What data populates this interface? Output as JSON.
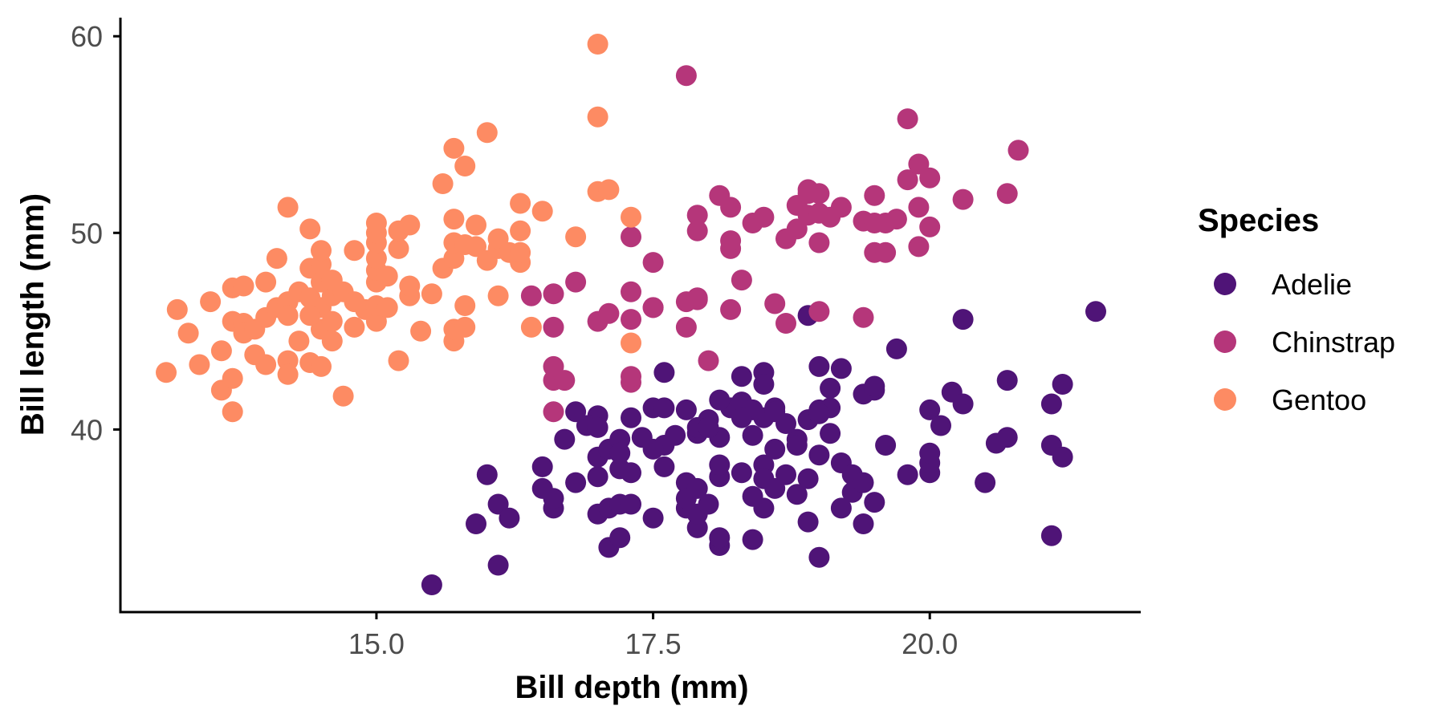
{
  "chart_data": {
    "type": "scatter",
    "xlabel": "Bill depth (mm)",
    "ylabel": "Bill length (mm)",
    "xlim": [
      13.1,
      21.5
    ],
    "ylim": [
      32.1,
      59.6
    ],
    "x_ticks": [
      "15.0",
      "17.5",
      "20.0"
    ],
    "y_ticks": [
      "40",
      "50",
      "60"
    ],
    "grid": false,
    "legend": {
      "title": "Species",
      "position": "right"
    },
    "series": [
      {
        "name": "Adelie",
        "color": "#4f1477",
        "points": [
          [
            15.5,
            32.1
          ],
          [
            16.1,
            33.1
          ],
          [
            17.1,
            34.0
          ],
          [
            17.2,
            34.5
          ],
          [
            17.9,
            35.0
          ],
          [
            18.1,
            34.1
          ],
          [
            18.1,
            34.5
          ],
          [
            18.4,
            34.4
          ],
          [
            19.0,
            33.5
          ],
          [
            21.1,
            34.6
          ],
          [
            15.9,
            35.2
          ],
          [
            16.1,
            36.2
          ],
          [
            16.2,
            35.5
          ],
          [
            16.6,
            36.0
          ],
          [
            16.6,
            36.5
          ],
          [
            16.5,
            37.0
          ],
          [
            16.5,
            38.1
          ],
          [
            16.0,
            37.7
          ],
          [
            16.8,
            37.3
          ],
          [
            17.0,
            35.7
          ],
          [
            17.1,
            36.0
          ],
          [
            17.2,
            36.2
          ],
          [
            17.3,
            36.2
          ],
          [
            17.5,
            35.5
          ],
          [
            17.0,
            37.6
          ],
          [
            17.2,
            38.0
          ],
          [
            17.3,
            37.8
          ],
          [
            17.0,
            38.6
          ],
          [
            17.1,
            39.0
          ],
          [
            17.2,
            39.5
          ],
          [
            17.4,
            39.6
          ],
          [
            17.6,
            39.2
          ],
          [
            17.6,
            38.1
          ],
          [
            17.8,
            37.3
          ],
          [
            17.8,
            36.0
          ],
          [
            17.8,
            36.5
          ],
          [
            17.9,
            35.7
          ],
          [
            18.0,
            36.2
          ],
          [
            17.9,
            37.0
          ],
          [
            18.1,
            37.6
          ],
          [
            18.1,
            38.2
          ],
          [
            18.1,
            39.6
          ],
          [
            17.9,
            39.8
          ],
          [
            18.0,
            40.5
          ],
          [
            18.2,
            41.1
          ],
          [
            18.1,
            41.5
          ],
          [
            17.8,
            41.0
          ],
          [
            17.9,
            40.1
          ],
          [
            17.7,
            39.7
          ],
          [
            17.5,
            41.1
          ],
          [
            17.6,
            41.1
          ],
          [
            17.6,
            42.9
          ],
          [
            17.0,
            40.7
          ],
          [
            16.9,
            40.2
          ],
          [
            16.8,
            40.9
          ],
          [
            17.0,
            40.1
          ],
          [
            17.3,
            40.6
          ],
          [
            16.7,
            39.5
          ],
          [
            18.3,
            41.4
          ],
          [
            18.3,
            42.7
          ],
          [
            18.5,
            42.9
          ],
          [
            18.5,
            42.3
          ],
          [
            18.6,
            41.1
          ],
          [
            18.5,
            40.6
          ],
          [
            18.4,
            41.0
          ],
          [
            18.4,
            39.7
          ],
          [
            18.6,
            39.0
          ],
          [
            18.8,
            39.5
          ],
          [
            18.5,
            38.2
          ],
          [
            18.3,
            37.8
          ],
          [
            18.5,
            37.5
          ],
          [
            18.6,
            37.0
          ],
          [
            18.4,
            36.6
          ],
          [
            18.5,
            36.0
          ],
          [
            18.7,
            37.7
          ],
          [
            18.8,
            36.7
          ],
          [
            18.9,
            37.5
          ],
          [
            18.9,
            35.3
          ],
          [
            19.0,
            38.7
          ],
          [
            19.1,
            39.8
          ],
          [
            18.9,
            40.5
          ],
          [
            19.0,
            41.0
          ],
          [
            19.1,
            41.1
          ],
          [
            19.2,
            43.1
          ],
          [
            19.0,
            43.2
          ],
          [
            19.1,
            42.1
          ],
          [
            19.2,
            38.3
          ],
          [
            19.2,
            36.0
          ],
          [
            19.3,
            37.7
          ],
          [
            19.3,
            36.8
          ],
          [
            19.4,
            37.3
          ],
          [
            19.5,
            36.3
          ],
          [
            19.4,
            35.2
          ],
          [
            19.4,
            41.8
          ],
          [
            19.5,
            42.0
          ],
          [
            19.5,
            42.2
          ],
          [
            19.6,
            39.2
          ],
          [
            19.7,
            44.1
          ],
          [
            19.8,
            37.7
          ],
          [
            20.0,
            37.8
          ],
          [
            20.0,
            38.3
          ],
          [
            20.0,
            38.8
          ],
          [
            20.0,
            41.0
          ],
          [
            20.1,
            40.2
          ],
          [
            20.2,
            41.9
          ],
          [
            20.3,
            41.3
          ],
          [
            20.3,
            45.6
          ],
          [
            20.5,
            37.3
          ],
          [
            20.6,
            39.3
          ],
          [
            20.7,
            39.6
          ],
          [
            20.7,
            42.5
          ],
          [
            21.1,
            39.2
          ],
          [
            21.2,
            38.6
          ],
          [
            21.1,
            41.3
          ],
          [
            21.2,
            42.3
          ],
          [
            21.5,
            46.0
          ],
          [
            18.9,
            45.8
          ],
          [
            18.7,
            40.3
          ],
          [
            18.3,
            40.6
          ],
          [
            18.0,
            40.1
          ],
          [
            17.2,
            38.8
          ],
          [
            17.5,
            39.0
          ],
          [
            18.6,
            40.9
          ],
          [
            18.8,
            39.2
          ],
          [
            19.0,
            40.8
          ]
        ]
      },
      {
        "name": "Chinstrap",
        "color": "#b5367a",
        "points": [
          [
            16.6,
            40.9
          ],
          [
            16.6,
            42.5
          ],
          [
            16.7,
            42.5
          ],
          [
            16.6,
            43.2
          ],
          [
            16.4,
            46.8
          ],
          [
            16.6,
            46.9
          ],
          [
            16.6,
            45.2
          ],
          [
            16.8,
            47.5
          ],
          [
            17.0,
            45.5
          ],
          [
            17.1,
            45.9
          ],
          [
            17.3,
            42.4
          ],
          [
            17.3,
            42.7
          ],
          [
            17.3,
            45.6
          ],
          [
            17.3,
            47.0
          ],
          [
            17.3,
            49.8
          ],
          [
            17.5,
            46.2
          ],
          [
            17.5,
            48.5
          ],
          [
            17.8,
            45.2
          ],
          [
            17.8,
            46.5
          ],
          [
            17.9,
            46.6
          ],
          [
            17.9,
            46.7
          ],
          [
            17.9,
            50.1
          ],
          [
            17.9,
            50.9
          ],
          [
            18.0,
            43.5
          ],
          [
            18.2,
            46.1
          ],
          [
            18.2,
            49.2
          ],
          [
            18.2,
            49.6
          ],
          [
            18.1,
            51.9
          ],
          [
            18.2,
            51.3
          ],
          [
            18.3,
            47.6
          ],
          [
            18.4,
            50.5
          ],
          [
            18.5,
            50.8
          ],
          [
            18.6,
            46.4
          ],
          [
            18.7,
            45.4
          ],
          [
            18.7,
            49.7
          ],
          [
            18.8,
            50.2
          ],
          [
            18.8,
            51.4
          ],
          [
            18.9,
            50.9
          ],
          [
            18.9,
            52.2
          ],
          [
            19.0,
            46.0
          ],
          [
            19.0,
            49.5
          ],
          [
            19.0,
            51.0
          ],
          [
            19.1,
            50.8
          ],
          [
            19.0,
            52.0
          ],
          [
            19.2,
            51.3
          ],
          [
            19.4,
            45.7
          ],
          [
            19.4,
            50.6
          ],
          [
            19.5,
            49.0
          ],
          [
            19.5,
            50.5
          ],
          [
            19.5,
            51.9
          ],
          [
            19.6,
            49.0
          ],
          [
            19.6,
            50.5
          ],
          [
            19.7,
            50.7
          ],
          [
            19.8,
            52.7
          ],
          [
            19.8,
            55.8
          ],
          [
            19.9,
            49.3
          ],
          [
            19.9,
            51.3
          ],
          [
            19.9,
            53.5
          ],
          [
            20.0,
            52.8
          ],
          [
            20.0,
            50.3
          ],
          [
            20.3,
            51.7
          ],
          [
            20.7,
            52.0
          ],
          [
            20.8,
            54.2
          ],
          [
            17.8,
            58.0
          ],
          [
            17.5,
            46.2
          ],
          [
            18.9,
            52.0
          ]
        ]
      },
      {
        "name": "Gentoo",
        "color": "#fd8b63",
        "points": [
          [
            13.1,
            42.9
          ],
          [
            13.2,
            46.1
          ],
          [
            13.3,
            44.9
          ],
          [
            13.4,
            43.3
          ],
          [
            13.5,
            46.5
          ],
          [
            13.6,
            42.0
          ],
          [
            13.6,
            44.0
          ],
          [
            13.7,
            45.5
          ],
          [
            13.7,
            47.2
          ],
          [
            13.8,
            47.3
          ],
          [
            13.7,
            40.9
          ],
          [
            13.7,
            42.6
          ],
          [
            13.8,
            45.4
          ],
          [
            13.8,
            44.9
          ],
          [
            13.9,
            45.1
          ],
          [
            13.9,
            43.8
          ],
          [
            14.0,
            45.7
          ],
          [
            14.0,
            43.3
          ],
          [
            14.0,
            47.5
          ],
          [
            14.1,
            48.7
          ],
          [
            14.1,
            46.2
          ],
          [
            14.2,
            46.5
          ],
          [
            14.2,
            43.5
          ],
          [
            14.2,
            42.8
          ],
          [
            14.2,
            45.8
          ],
          [
            14.2,
            51.3
          ],
          [
            14.3,
            47.0
          ],
          [
            14.3,
            44.5
          ],
          [
            14.4,
            46.7
          ],
          [
            14.4,
            48.2
          ],
          [
            14.4,
            50.2
          ],
          [
            14.4,
            43.4
          ],
          [
            14.5,
            43.2
          ],
          [
            14.5,
            45.1
          ],
          [
            14.5,
            46.2
          ],
          [
            14.5,
            47.5
          ],
          [
            14.5,
            48.4
          ],
          [
            14.5,
            49.1
          ],
          [
            14.6,
            46.8
          ],
          [
            14.6,
            45.5
          ],
          [
            14.6,
            44.5
          ],
          [
            14.7,
            41.7
          ],
          [
            14.7,
            47.0
          ],
          [
            14.8,
            46.5
          ],
          [
            14.8,
            45.2
          ],
          [
            14.8,
            49.1
          ],
          [
            14.9,
            46.1
          ],
          [
            15.0,
            45.5
          ],
          [
            15.0,
            46.3
          ],
          [
            15.0,
            47.5
          ],
          [
            15.0,
            48.1
          ],
          [
            15.0,
            48.7
          ],
          [
            15.0,
            49.5
          ],
          [
            15.0,
            50.0
          ],
          [
            15.0,
            50.5
          ],
          [
            15.1,
            46.2
          ],
          [
            15.2,
            43.5
          ],
          [
            15.2,
            49.2
          ],
          [
            15.2,
            50.1
          ],
          [
            15.3,
            46.8
          ],
          [
            15.3,
            47.3
          ],
          [
            15.3,
            50.4
          ],
          [
            15.4,
            45.0
          ],
          [
            15.5,
            46.9
          ],
          [
            15.6,
            48.2
          ],
          [
            15.6,
            52.5
          ],
          [
            15.7,
            44.5
          ],
          [
            15.7,
            45.1
          ],
          [
            15.7,
            48.7
          ],
          [
            15.7,
            49.5
          ],
          [
            15.7,
            50.7
          ],
          [
            15.7,
            54.3
          ],
          [
            15.8,
            45.2
          ],
          [
            15.8,
            46.3
          ],
          [
            15.8,
            49.4
          ],
          [
            15.8,
            53.4
          ],
          [
            15.9,
            49.3
          ],
          [
            15.9,
            50.4
          ],
          [
            16.0,
            48.6
          ],
          [
            16.0,
            55.1
          ],
          [
            16.1,
            46.8
          ],
          [
            16.1,
            49.2
          ],
          [
            16.1,
            49.7
          ],
          [
            16.2,
            49.0
          ],
          [
            16.3,
            48.5
          ],
          [
            16.3,
            51.5
          ],
          [
            16.3,
            50.1
          ],
          [
            16.4,
            45.2
          ],
          [
            16.5,
            51.1
          ],
          [
            16.8,
            49.8
          ],
          [
            17.0,
            52.1
          ],
          [
            17.1,
            52.2
          ],
          [
            17.0,
            55.9
          ],
          [
            17.0,
            59.6
          ],
          [
            17.3,
            50.8
          ],
          [
            17.3,
            44.4
          ],
          [
            16.3,
            49.0
          ],
          [
            14.6,
            47.6
          ],
          [
            15.1,
            47.8
          ],
          [
            14.4,
            45.8
          ]
        ]
      }
    ]
  }
}
